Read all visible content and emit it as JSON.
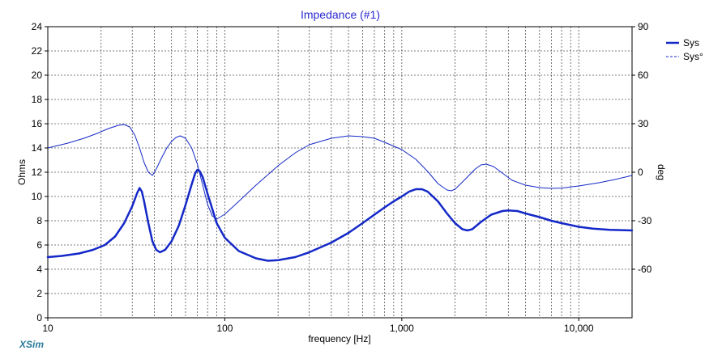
{
  "app_brand": "XSim",
  "colors": {
    "series": "#1428c8",
    "title": "#2a2ad0",
    "frame": "#000000",
    "grid": "#555555",
    "brand": "#2a7a9a"
  },
  "chart_data": {
    "type": "line",
    "title": "Impedance (#1)",
    "xlabel": "frequency [Hz]",
    "ylabel": "Ohms",
    "y2label": "deg",
    "x_scale": "log",
    "xlim": [
      10,
      20000
    ],
    "ylim": [
      0,
      24
    ],
    "y2lim": [
      -90,
      90
    ],
    "x_ticks": [
      {
        "value": 10,
        "label": "10"
      },
      {
        "value": 100,
        "label": "100"
      },
      {
        "value": 1000,
        "label": "1,000"
      },
      {
        "value": 10000,
        "label": "10,000"
      }
    ],
    "y_ticks": [
      "0",
      "2",
      "4",
      "6",
      "8",
      "10",
      "12",
      "14",
      "16",
      "18",
      "20",
      "22",
      "24"
    ],
    "y2_ticks": [
      "-60",
      "-30",
      "0",
      "30",
      "60",
      "90"
    ],
    "grid": true,
    "legend_position": "top-right",
    "series": [
      {
        "name": "Sys",
        "axis": "left",
        "style": "solid",
        "points": [
          [
            10,
            5.0
          ],
          [
            12,
            5.1
          ],
          [
            15,
            5.3
          ],
          [
            18,
            5.6
          ],
          [
            21,
            6.0
          ],
          [
            24,
            6.7
          ],
          [
            27,
            7.8
          ],
          [
            30,
            9.2
          ],
          [
            32,
            10.3
          ],
          [
            33,
            10.7
          ],
          [
            34,
            10.4
          ],
          [
            35,
            9.6
          ],
          [
            37,
            7.8
          ],
          [
            39,
            6.3
          ],
          [
            41,
            5.6
          ],
          [
            43,
            5.4
          ],
          [
            46,
            5.6
          ],
          [
            50,
            6.3
          ],
          [
            55,
            7.6
          ],
          [
            60,
            9.3
          ],
          [
            65,
            11.0
          ],
          [
            68,
            11.9
          ],
          [
            70,
            12.2
          ],
          [
            72,
            12.1
          ],
          [
            75,
            11.6
          ],
          [
            80,
            10.2
          ],
          [
            90,
            7.8
          ],
          [
            100,
            6.6
          ],
          [
            120,
            5.5
          ],
          [
            150,
            4.9
          ],
          [
            175,
            4.7
          ],
          [
            200,
            4.75
          ],
          [
            250,
            5.0
          ],
          [
            300,
            5.4
          ],
          [
            400,
            6.2
          ],
          [
            500,
            7.0
          ],
          [
            600,
            7.8
          ],
          [
            700,
            8.5
          ],
          [
            800,
            9.1
          ],
          [
            900,
            9.6
          ],
          [
            1000,
            10.0
          ],
          [
            1100,
            10.4
          ],
          [
            1200,
            10.6
          ],
          [
            1300,
            10.6
          ],
          [
            1400,
            10.4
          ],
          [
            1600,
            9.6
          ],
          [
            1800,
            8.6
          ],
          [
            2000,
            7.8
          ],
          [
            2200,
            7.3
          ],
          [
            2350,
            7.2
          ],
          [
            2500,
            7.3
          ],
          [
            2800,
            7.9
          ],
          [
            3200,
            8.5
          ],
          [
            3700,
            8.8
          ],
          [
            4000,
            8.85
          ],
          [
            4500,
            8.8
          ],
          [
            5000,
            8.6
          ],
          [
            6000,
            8.3
          ],
          [
            7000,
            8.0
          ],
          [
            8000,
            7.8
          ],
          [
            10000,
            7.5
          ],
          [
            12000,
            7.35
          ],
          [
            15000,
            7.25
          ],
          [
            20000,
            7.2
          ]
        ]
      },
      {
        "name": "Sys°",
        "axis": "right",
        "style": "dashed",
        "points": [
          [
            10,
            15
          ],
          [
            13,
            18
          ],
          [
            16,
            21
          ],
          [
            19,
            24
          ],
          [
            22,
            27
          ],
          [
            25,
            29
          ],
          [
            27,
            29.5
          ],
          [
            29,
            28
          ],
          [
            31,
            23
          ],
          [
            33,
            15
          ],
          [
            35,
            6
          ],
          [
            37,
            0
          ],
          [
            39,
            -2
          ],
          [
            41,
            2
          ],
          [
            44,
            9
          ],
          [
            47,
            15
          ],
          [
            50,
            19
          ],
          [
            53,
            21.5
          ],
          [
            56,
            22.5
          ],
          [
            60,
            21
          ],
          [
            65,
            15
          ],
          [
            70,
            5
          ],
          [
            75,
            -8
          ],
          [
            80,
            -20
          ],
          [
            85,
            -27
          ],
          [
            90,
            -29
          ],
          [
            100,
            -26
          ],
          [
            120,
            -18
          ],
          [
            150,
            -8
          ],
          [
            200,
            4
          ],
          [
            250,
            12
          ],
          [
            300,
            17
          ],
          [
            400,
            21
          ],
          [
            500,
            22.5
          ],
          [
            600,
            22
          ],
          [
            700,
            21
          ],
          [
            800,
            18.5
          ],
          [
            1000,
            14
          ],
          [
            1200,
            8
          ],
          [
            1400,
            0.5
          ],
          [
            1600,
            -7
          ],
          [
            1800,
            -11
          ],
          [
            1900,
            -11.5
          ],
          [
            2000,
            -10.5
          ],
          [
            2300,
            -4
          ],
          [
            2600,
            2
          ],
          [
            2800,
            4.5
          ],
          [
            3000,
            5
          ],
          [
            3300,
            3.5
          ],
          [
            3700,
            -0.5
          ],
          [
            4200,
            -5
          ],
          [
            5000,
            -8
          ],
          [
            6000,
            -9.5
          ],
          [
            7000,
            -10
          ],
          [
            8000,
            -9.8
          ],
          [
            10000,
            -8.5
          ],
          [
            13000,
            -6.5
          ],
          [
            16000,
            -4.5
          ],
          [
            20000,
            -2
          ]
        ]
      }
    ]
  }
}
